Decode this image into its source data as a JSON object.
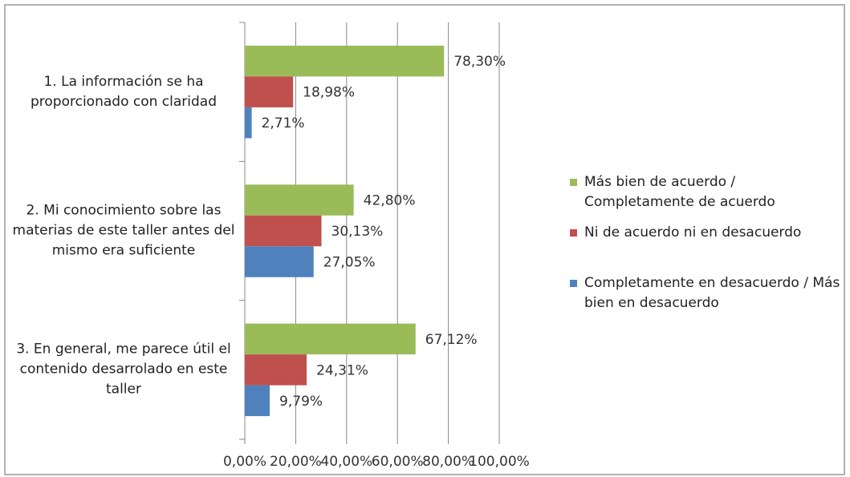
{
  "chart_data": {
    "type": "barh",
    "categories": [
      "1. La información se ha proporcionado con claridad",
      "2. Mi conocimiento sobre las materias de este taller antes del mismo era suficiente",
      "3. En general, me parece útil el contenido desarrolado en este taller"
    ],
    "series": [
      {
        "name": "Más bien de acuerdo / Completamente de acuerdo",
        "color": "#9bbb59",
        "values": [
          78.3,
          42.8,
          67.12
        ],
        "value_labels": [
          "78,30%",
          "42,80%",
          "67,12%"
        ]
      },
      {
        "name": "Ni de acuerdo ni en desacuerdo",
        "color": "#c0504d",
        "values": [
          18.98,
          30.13,
          24.31
        ],
        "value_labels": [
          "18,98%",
          "30,13%",
          "24,31%"
        ]
      },
      {
        "name": "Completamente en desacuerdo / Más bien en desacuerdo",
        "color": "#4f81bd",
        "values": [
          2.71,
          27.05,
          9.79
        ],
        "value_labels": [
          "2,71%",
          "27,05%",
          "9,79%"
        ]
      }
    ],
    "xlim": [
      0,
      100
    ],
    "xticks": [
      {
        "value": 0,
        "label": "0,00%"
      },
      {
        "value": 20,
        "label": "20,00%"
      },
      {
        "value": 40,
        "label": "40,00%"
      },
      {
        "value": 60,
        "label": "60,00%"
      },
      {
        "value": 80,
        "label": "80,00%"
      },
      {
        "value": 100,
        "label": "100,00%"
      }
    ],
    "grid": true,
    "legend": "right"
  }
}
